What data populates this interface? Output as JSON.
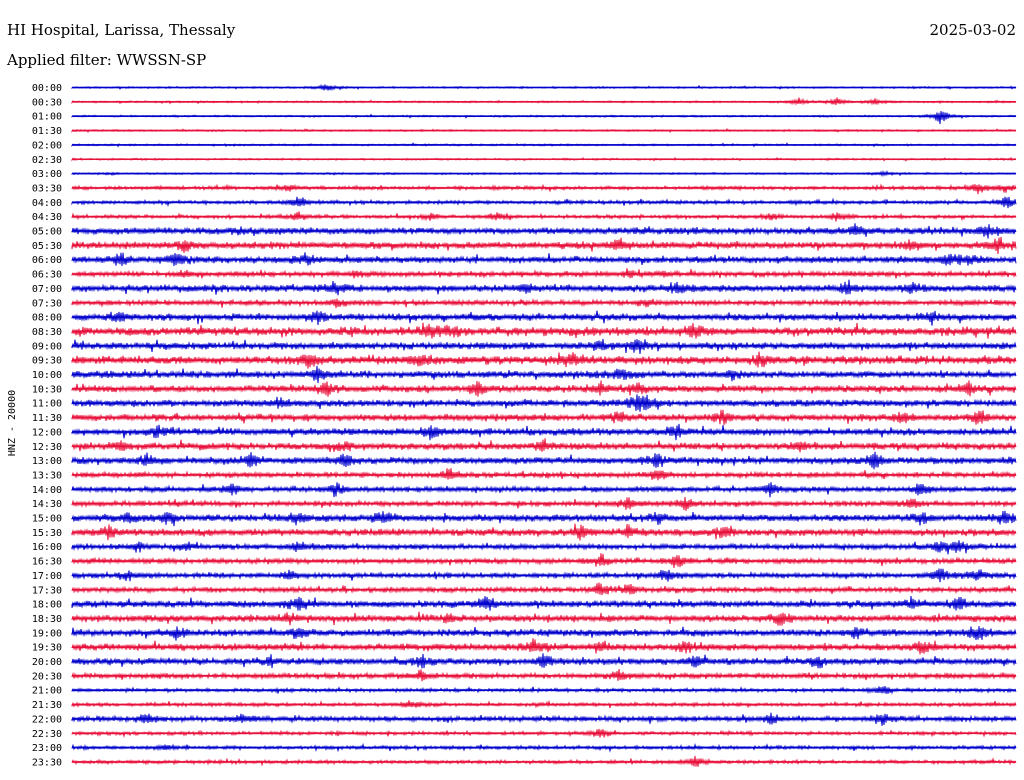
{
  "header": {
    "station": "HI Hospital, Larissa, Thessaly",
    "date": "2025-03-02",
    "filter": "Applied filter: WWSSN-SP"
  },
  "chart_data": {
    "type": "line",
    "description_kind": "helicorder",
    "ylabel": "HNZ - 20000",
    "row_labels": [
      "00:00",
      "00:30",
      "01:00",
      "01:30",
      "02:00",
      "02:30",
      "03:00",
      "03:30",
      "04:00",
      "04:30",
      "05:00",
      "05:30",
      "06:00",
      "06:30",
      "07:00",
      "07:30",
      "08:00",
      "08:30",
      "09:00",
      "09:30",
      "10:00",
      "10:30",
      "11:00",
      "11:30",
      "12:00",
      "12:30",
      "13:00",
      "13:30",
      "14:00",
      "14:30",
      "15:00",
      "15:30",
      "16:00",
      "16:30",
      "17:00",
      "17:30",
      "18:00",
      "18:30",
      "19:00",
      "19:30",
      "20:00",
      "20:30",
      "21:00",
      "21:30",
      "22:00",
      "22:30",
      "23:00",
      "23:30"
    ],
    "colors": [
      "#0000cc",
      "#e8103a"
    ],
    "noise_level": [
      1,
      1,
      1,
      1,
      1,
      1,
      1,
      2,
      2,
      2,
      4,
      4,
      4,
      3,
      4,
      3,
      4,
      5,
      4,
      5,
      4,
      4,
      4,
      4,
      4,
      4,
      4,
      3,
      3,
      3,
      4,
      4,
      3,
      3,
      3,
      3,
      4,
      4,
      4,
      4,
      4,
      3,
      2,
      2,
      3,
      2,
      2,
      2
    ],
    "events": [
      [
        [
          0.27,
          4
        ]
      ],
      [
        [
          0.77,
          4
        ],
        [
          0.81,
          4
        ],
        [
          0.85,
          3
        ]
      ],
      [
        [
          0.92,
          8
        ]
      ],
      [],
      [],
      [],
      [
        [
          0.86,
          2
        ]
      ],
      [
        [
          0.23,
          3
        ],
        [
          0.96,
          6
        ],
        [
          0.99,
          4
        ]
      ],
      [
        [
          0.24,
          6
        ],
        [
          0.99,
          7
        ]
      ],
      [
        [
          0.24,
          5
        ],
        [
          0.38,
          3
        ],
        [
          0.45,
          4
        ],
        [
          0.74,
          3
        ],
        [
          0.81,
          4
        ]
      ],
      [
        [
          0.18,
          3
        ],
        [
          0.83,
          5
        ],
        [
          0.97,
          7
        ]
      ],
      [
        [
          0.12,
          6
        ],
        [
          0.58,
          6
        ],
        [
          0.89,
          5
        ],
        [
          0.98,
          7
        ]
      ],
      [
        [
          0.05,
          7
        ],
        [
          0.11,
          7
        ],
        [
          0.25,
          6
        ],
        [
          0.93,
          6
        ],
        [
          0.95,
          5
        ]
      ],
      [
        [
          0.12,
          3
        ],
        [
          0.3,
          3
        ],
        [
          0.59,
          3
        ],
        [
          0.63,
          3
        ]
      ],
      [
        [
          0.28,
          6
        ],
        [
          0.48,
          5
        ],
        [
          0.64,
          5
        ],
        [
          0.82,
          5
        ],
        [
          0.89,
          5
        ]
      ],
      [
        [
          0.28,
          4
        ],
        [
          0.61,
          4
        ]
      ],
      [
        [
          0.05,
          4
        ],
        [
          0.26,
          6
        ],
        [
          0.91,
          7
        ]
      ],
      [
        [
          0.38,
          7
        ],
        [
          0.4,
          4
        ],
        [
          0.66,
          7
        ]
      ],
      [
        [
          0.56,
          6
        ],
        [
          0.6,
          8
        ]
      ],
      [
        [
          0.25,
          6
        ],
        [
          0.37,
          6
        ],
        [
          0.53,
          7
        ],
        [
          0.73,
          7
        ]
      ],
      [
        [
          0.26,
          7
        ],
        [
          0.58,
          5
        ],
        [
          0.7,
          5
        ]
      ],
      [
        [
          0.27,
          6
        ],
        [
          0.43,
          7
        ],
        [
          0.56,
          5
        ],
        [
          0.6,
          5
        ],
        [
          0.95,
          5
        ]
      ],
      [
        [
          0.22,
          4
        ],
        [
          0.6,
          8
        ],
        [
          0.61,
          5
        ]
      ],
      [
        [
          0.58,
          5
        ],
        [
          0.69,
          6
        ],
        [
          0.88,
          5
        ],
        [
          0.96,
          8
        ]
      ],
      [
        [
          0.09,
          6
        ],
        [
          0.38,
          8
        ],
        [
          0.64,
          7
        ]
      ],
      [
        [
          0.05,
          4
        ],
        [
          0.29,
          5
        ],
        [
          0.5,
          5
        ],
        [
          0.77,
          5
        ]
      ],
      [
        [
          0.08,
          5
        ],
        [
          0.19,
          7
        ],
        [
          0.29,
          9
        ],
        [
          0.62,
          7
        ],
        [
          0.85,
          7
        ]
      ],
      [
        [
          0.4,
          7
        ],
        [
          0.62,
          6
        ]
      ],
      [
        [
          0.17,
          5
        ],
        [
          0.28,
          6
        ],
        [
          0.74,
          6
        ],
        [
          0.9,
          7
        ]
      ],
      [
        [
          0.59,
          6
        ],
        [
          0.65,
          5
        ],
        [
          0.89,
          5
        ]
      ],
      [
        [
          0.06,
          5
        ],
        [
          0.1,
          5
        ],
        [
          0.24,
          6
        ],
        [
          0.33,
          7
        ],
        [
          0.62,
          6
        ],
        [
          0.9,
          5
        ],
        [
          0.99,
          5
        ]
      ],
      [
        [
          0.04,
          7
        ],
        [
          0.54,
          7
        ],
        [
          0.59,
          5
        ],
        [
          0.69,
          6
        ]
      ],
      [
        [
          0.07,
          4
        ],
        [
          0.12,
          4
        ],
        [
          0.24,
          6
        ],
        [
          0.92,
          6
        ],
        [
          0.94,
          6
        ]
      ],
      [
        [
          0.56,
          7
        ],
        [
          0.64,
          7
        ]
      ],
      [
        [
          0.06,
          4
        ],
        [
          0.23,
          4
        ],
        [
          0.63,
          7
        ],
        [
          0.92,
          6
        ],
        [
          0.96,
          6
        ]
      ],
      [
        [
          0.56,
          7
        ],
        [
          0.59,
          6
        ]
      ],
      [
        [
          0.24,
          7
        ],
        [
          0.44,
          7
        ],
        [
          0.89,
          5
        ],
        [
          0.94,
          8
        ]
      ],
      [
        [
          0.23,
          5
        ],
        [
          0.4,
          5
        ],
        [
          0.75,
          8
        ]
      ],
      [
        [
          0.11,
          6
        ],
        [
          0.24,
          6
        ],
        [
          0.83,
          5
        ],
        [
          0.96,
          8
        ]
      ],
      [
        [
          0.49,
          7
        ],
        [
          0.56,
          6
        ],
        [
          0.65,
          5
        ],
        [
          0.9,
          6
        ]
      ],
      [
        [
          0.21,
          5
        ],
        [
          0.37,
          6
        ],
        [
          0.5,
          6
        ],
        [
          0.66,
          6
        ],
        [
          0.79,
          5
        ]
      ],
      [
        [
          0.37,
          5
        ],
        [
          0.58,
          6
        ]
      ],
      [
        [
          0.86,
          5
        ]
      ],
      [
        [
          0.36,
          5
        ]
      ],
      [
        [
          0.08,
          6
        ],
        [
          0.18,
          5
        ],
        [
          0.74,
          5
        ],
        [
          0.86,
          6
        ]
      ],
      [
        [
          0.56,
          5
        ]
      ],
      [
        [
          0.1,
          3
        ]
      ],
      [
        [
          0.66,
          6
        ]
      ]
    ]
  }
}
